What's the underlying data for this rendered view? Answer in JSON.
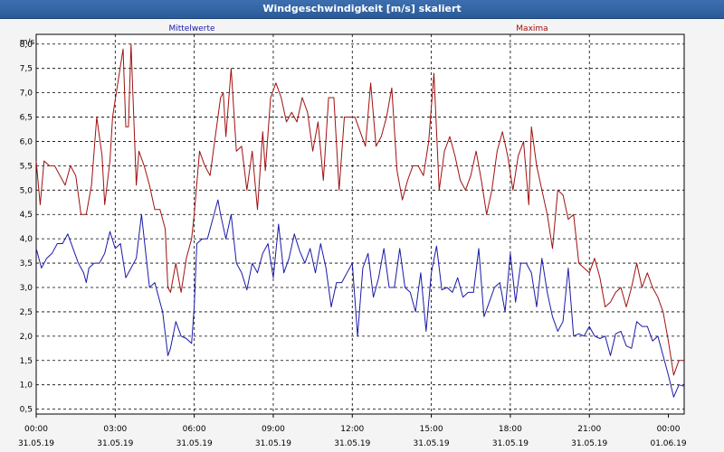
{
  "window": {
    "title": "Windgeschwindigkeit [m/s] skaliert"
  },
  "chart_data": {
    "type": "line",
    "title": "Windgeschwindigkeit [m/s] skaliert",
    "ylabel": "m/s",
    "ylim": [
      0.4,
      8.2
    ],
    "xlim": [
      0,
      24
    ],
    "grid": true,
    "y_ticks": [
      "0,5",
      "1,0",
      "1,5",
      "2,0",
      "2,5",
      "3,0",
      "3,5",
      "4,0",
      "4,5",
      "5,0",
      "5,5",
      "6,0",
      "6,5",
      "7,0",
      "7,5",
      "8,0"
    ],
    "x_ticks": [
      {
        "time": "00:00",
        "date": "31.05.19"
      },
      {
        "time": "03:00",
        "date": "31.05.19"
      },
      {
        "time": "06:00",
        "date": "31.05.19"
      },
      {
        "time": "09:00",
        "date": "31.05.19"
      },
      {
        "time": "12:00",
        "date": "31.05.19"
      },
      {
        "time": "15:00",
        "date": "31.05.19"
      },
      {
        "time": "18:00",
        "date": "31.05.19"
      },
      {
        "time": "21:00",
        "date": "31.05.19"
      },
      {
        "time": "00:00",
        "date": "01.06.19"
      }
    ],
    "series": [
      {
        "name": "Mittelwerte",
        "color": "#1a1aaa",
        "points": [
          [
            0.0,
            3.8
          ],
          [
            0.2,
            3.4
          ],
          [
            0.4,
            3.6
          ],
          [
            0.6,
            3.7
          ],
          [
            0.8,
            3.9
          ],
          [
            1.0,
            3.9
          ],
          [
            1.2,
            4.1
          ],
          [
            1.4,
            3.8
          ],
          [
            1.6,
            3.5
          ],
          [
            1.8,
            3.3
          ],
          [
            1.9,
            3.1
          ],
          [
            2.0,
            3.4
          ],
          [
            2.2,
            3.5
          ],
          [
            2.4,
            3.5
          ],
          [
            2.6,
            3.7
          ],
          [
            2.8,
            4.15
          ],
          [
            3.0,
            3.8
          ],
          [
            3.2,
            3.9
          ],
          [
            3.4,
            3.2
          ],
          [
            3.6,
            3.4
          ],
          [
            3.8,
            3.6
          ],
          [
            4.0,
            4.5
          ],
          [
            4.1,
            4.0
          ],
          [
            4.3,
            3.0
          ],
          [
            4.5,
            3.1
          ],
          [
            4.7,
            2.7
          ],
          [
            4.8,
            2.5
          ],
          [
            5.0,
            1.6
          ],
          [
            5.1,
            1.75
          ],
          [
            5.3,
            2.3
          ],
          [
            5.5,
            2.0
          ],
          [
            5.7,
            1.95
          ],
          [
            5.9,
            1.85
          ],
          [
            6.0,
            2.6
          ],
          [
            6.1,
            3.9
          ],
          [
            6.3,
            4.0
          ],
          [
            6.5,
            4.0
          ],
          [
            6.7,
            4.4
          ],
          [
            6.9,
            4.8
          ],
          [
            7.0,
            4.5
          ],
          [
            7.2,
            4.0
          ],
          [
            7.4,
            4.5
          ],
          [
            7.6,
            3.5
          ],
          [
            7.8,
            3.3
          ],
          [
            8.0,
            2.95
          ],
          [
            8.2,
            3.5
          ],
          [
            8.4,
            3.3
          ],
          [
            8.6,
            3.7
          ],
          [
            8.8,
            3.9
          ],
          [
            9.0,
            3.2
          ],
          [
            9.2,
            4.3
          ],
          [
            9.4,
            3.3
          ],
          [
            9.6,
            3.6
          ],
          [
            9.8,
            4.1
          ],
          [
            10.0,
            3.75
          ],
          [
            10.2,
            3.5
          ],
          [
            10.4,
            3.8
          ],
          [
            10.6,
            3.3
          ],
          [
            10.8,
            3.9
          ],
          [
            11.0,
            3.4
          ],
          [
            11.2,
            2.6
          ],
          [
            11.4,
            3.1
          ],
          [
            11.6,
            3.1
          ],
          [
            11.8,
            3.3
          ],
          [
            12.0,
            3.5
          ],
          [
            12.2,
            2.0
          ],
          [
            12.4,
            3.4
          ],
          [
            12.6,
            3.7
          ],
          [
            12.8,
            2.8
          ],
          [
            13.0,
            3.2
          ],
          [
            13.2,
            3.8
          ],
          [
            13.4,
            3.0
          ],
          [
            13.6,
            3.0
          ],
          [
            13.8,
            3.8
          ],
          [
            14.0,
            3.0
          ],
          [
            14.2,
            2.9
          ],
          [
            14.4,
            2.5
          ],
          [
            14.6,
            3.3
          ],
          [
            14.8,
            2.1
          ],
          [
            15.0,
            3.3
          ],
          [
            15.2,
            3.85
          ],
          [
            15.4,
            2.95
          ],
          [
            15.6,
            3.0
          ],
          [
            15.8,
            2.9
          ],
          [
            16.0,
            3.2
          ],
          [
            16.2,
            2.8
          ],
          [
            16.4,
            2.9
          ],
          [
            16.6,
            2.9
          ],
          [
            16.8,
            3.8
          ],
          [
            17.0,
            2.4
          ],
          [
            17.2,
            2.7
          ],
          [
            17.4,
            3.0
          ],
          [
            17.6,
            3.1
          ],
          [
            17.8,
            2.5
          ],
          [
            18.0,
            3.7
          ],
          [
            18.2,
            2.7
          ],
          [
            18.4,
            3.5
          ],
          [
            18.6,
            3.5
          ],
          [
            18.8,
            3.3
          ],
          [
            19.0,
            2.6
          ],
          [
            19.2,
            3.6
          ],
          [
            19.4,
            2.9
          ],
          [
            19.6,
            2.4
          ],
          [
            19.8,
            2.1
          ],
          [
            20.0,
            2.3
          ],
          [
            20.2,
            3.4
          ],
          [
            20.4,
            2.0
          ],
          [
            20.6,
            2.05
          ],
          [
            20.8,
            2.0
          ],
          [
            21.0,
            2.2
          ],
          [
            21.2,
            2.0
          ],
          [
            21.4,
            1.95
          ],
          [
            21.6,
            2.0
          ],
          [
            21.8,
            1.6
          ],
          [
            22.0,
            2.05
          ],
          [
            22.2,
            2.1
          ],
          [
            22.4,
            1.8
          ],
          [
            22.6,
            1.75
          ],
          [
            22.8,
            2.3
          ],
          [
            23.0,
            2.2
          ],
          [
            23.2,
            2.2
          ],
          [
            23.4,
            1.9
          ],
          [
            23.6,
            2.0
          ],
          [
            23.8,
            1.6
          ],
          [
            24.0,
            1.2
          ],
          [
            24.2,
            0.75
          ],
          [
            24.4,
            1.0
          ],
          [
            24.6,
            0.97
          ]
        ]
      },
      {
        "name": "Maxima",
        "color": "#a01010",
        "points": [
          [
            0.0,
            5.6
          ],
          [
            0.15,
            4.7
          ],
          [
            0.3,
            5.6
          ],
          [
            0.5,
            5.5
          ],
          [
            0.7,
            5.5
          ],
          [
            0.9,
            5.3
          ],
          [
            1.1,
            5.1
          ],
          [
            1.3,
            5.5
          ],
          [
            1.5,
            5.3
          ],
          [
            1.7,
            4.5
          ],
          [
            1.9,
            4.5
          ],
          [
            2.1,
            5.1
          ],
          [
            2.3,
            6.5
          ],
          [
            2.5,
            5.7
          ],
          [
            2.6,
            4.7
          ],
          [
            2.8,
            5.6
          ],
          [
            2.9,
            6.5
          ],
          [
            3.1,
            7.2
          ],
          [
            3.3,
            7.9
          ],
          [
            3.4,
            6.3
          ],
          [
            3.5,
            6.3
          ],
          [
            3.6,
            8.0
          ],
          [
            3.8,
            5.1
          ],
          [
            3.9,
            5.8
          ],
          [
            4.1,
            5.5
          ],
          [
            4.3,
            5.1
          ],
          [
            4.5,
            4.6
          ],
          [
            4.7,
            4.6
          ],
          [
            4.9,
            4.2
          ],
          [
            5.0,
            3.0
          ],
          [
            5.1,
            2.9
          ],
          [
            5.3,
            3.5
          ],
          [
            5.5,
            2.9
          ],
          [
            5.7,
            3.6
          ],
          [
            5.9,
            4.0
          ],
          [
            6.0,
            4.5
          ],
          [
            6.2,
            5.8
          ],
          [
            6.4,
            5.5
          ],
          [
            6.6,
            5.3
          ],
          [
            6.8,
            6.1
          ],
          [
            7.0,
            6.9
          ],
          [
            7.1,
            7.0
          ],
          [
            7.2,
            6.1
          ],
          [
            7.4,
            7.5
          ],
          [
            7.6,
            5.8
          ],
          [
            7.8,
            5.9
          ],
          [
            8.0,
            5.0
          ],
          [
            8.2,
            5.8
          ],
          [
            8.4,
            4.6
          ],
          [
            8.6,
            6.2
          ],
          [
            8.7,
            5.4
          ],
          [
            8.9,
            6.9
          ],
          [
            9.1,
            7.2
          ],
          [
            9.3,
            6.9
          ],
          [
            9.5,
            6.4
          ],
          [
            9.7,
            6.6
          ],
          [
            9.9,
            6.4
          ],
          [
            10.1,
            6.9
          ],
          [
            10.3,
            6.6
          ],
          [
            10.5,
            5.8
          ],
          [
            10.7,
            6.4
          ],
          [
            10.9,
            5.2
          ],
          [
            11.1,
            6.9
          ],
          [
            11.3,
            6.9
          ],
          [
            11.5,
            5.0
          ],
          [
            11.7,
            6.5
          ],
          [
            11.9,
            6.5
          ],
          [
            12.1,
            6.5
          ],
          [
            12.3,
            6.2
          ],
          [
            12.5,
            5.9
          ],
          [
            12.7,
            7.2
          ],
          [
            12.9,
            5.9
          ],
          [
            13.1,
            6.1
          ],
          [
            13.3,
            6.5
          ],
          [
            13.5,
            7.1
          ],
          [
            13.7,
            5.4
          ],
          [
            13.9,
            4.8
          ],
          [
            14.1,
            5.2
          ],
          [
            14.3,
            5.5
          ],
          [
            14.5,
            5.5
          ],
          [
            14.7,
            5.3
          ],
          [
            14.9,
            6.0
          ],
          [
            15.1,
            7.4
          ],
          [
            15.3,
            5.0
          ],
          [
            15.5,
            5.8
          ],
          [
            15.7,
            6.1
          ],
          [
            15.9,
            5.7
          ],
          [
            16.1,
            5.2
          ],
          [
            16.3,
            5.0
          ],
          [
            16.5,
            5.3
          ],
          [
            16.7,
            5.8
          ],
          [
            16.9,
            5.2
          ],
          [
            17.1,
            4.5
          ],
          [
            17.3,
            5.0
          ],
          [
            17.5,
            5.8
          ],
          [
            17.7,
            6.2
          ],
          [
            17.9,
            5.7
          ],
          [
            18.1,
            5.0
          ],
          [
            18.3,
            5.7
          ],
          [
            18.5,
            6.0
          ],
          [
            18.7,
            4.7
          ],
          [
            18.8,
            6.3
          ],
          [
            19.0,
            5.5
          ],
          [
            19.2,
            5.0
          ],
          [
            19.4,
            4.5
          ],
          [
            19.6,
            3.8
          ],
          [
            19.8,
            5.0
          ],
          [
            20.0,
            4.9
          ],
          [
            20.2,
            4.4
          ],
          [
            20.4,
            4.5
          ],
          [
            20.6,
            3.5
          ],
          [
            20.8,
            3.4
          ],
          [
            21.0,
            3.3
          ],
          [
            21.2,
            3.6
          ],
          [
            21.4,
            3.2
          ],
          [
            21.6,
            2.6
          ],
          [
            21.8,
            2.7
          ],
          [
            22.0,
            2.9
          ],
          [
            22.2,
            3.0
          ],
          [
            22.4,
            2.6
          ],
          [
            22.6,
            3.0
          ],
          [
            22.8,
            3.5
          ],
          [
            23.0,
            3.0
          ],
          [
            23.2,
            3.3
          ],
          [
            23.4,
            3.0
          ],
          [
            23.6,
            2.8
          ],
          [
            23.8,
            2.5
          ],
          [
            24.0,
            1.9
          ],
          [
            24.2,
            1.2
          ],
          [
            24.4,
            1.5
          ],
          [
            24.6,
            1.5
          ]
        ]
      }
    ]
  }
}
